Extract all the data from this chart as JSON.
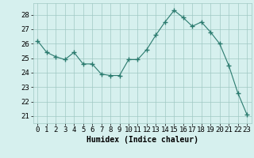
{
  "x": [
    0,
    1,
    2,
    3,
    4,
    5,
    6,
    7,
    8,
    9,
    10,
    11,
    12,
    13,
    14,
    15,
    16,
    17,
    18,
    19,
    20,
    21,
    22,
    23
  ],
  "y": [
    26.2,
    25.4,
    25.1,
    24.9,
    25.4,
    24.6,
    24.6,
    23.9,
    23.8,
    23.8,
    24.9,
    24.9,
    25.6,
    26.6,
    27.5,
    28.3,
    27.8,
    27.2,
    27.5,
    26.8,
    26.0,
    24.5,
    22.6,
    21.1
  ],
  "line_color": "#2a7a6e",
  "marker": "+",
  "marker_size": 4,
  "bg_color": "#d6f0ee",
  "grid_color": "#a0c8c4",
  "xlabel": "Humidex (Indice chaleur)",
  "xlim": [
    -0.5,
    23.5
  ],
  "ylim": [
    20.5,
    28.8
  ],
  "yticks": [
    21,
    22,
    23,
    24,
    25,
    26,
    27,
    28
  ],
  "xticks": [
    0,
    1,
    2,
    3,
    4,
    5,
    6,
    7,
    8,
    9,
    10,
    11,
    12,
    13,
    14,
    15,
    16,
    17,
    18,
    19,
    20,
    21,
    22,
    23
  ],
  "label_fontsize": 7,
  "tick_fontsize": 6.5
}
